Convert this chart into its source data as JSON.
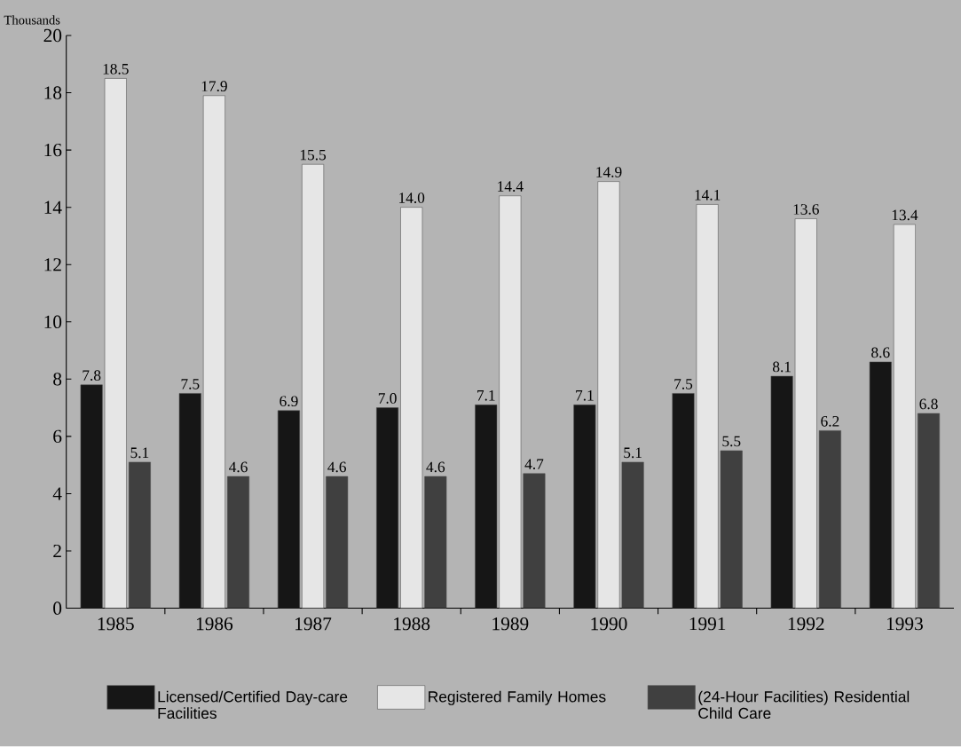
{
  "chart_data": {
    "type": "bar",
    "ylabel": "Thousands",
    "categories": [
      "1985",
      "1986",
      "1987",
      "1988",
      "1989",
      "1990",
      "1991",
      "1992",
      "1993"
    ],
    "series": [
      {
        "name": "Licensed/Certified Day-care Facilities",
        "color": "#161616",
        "values": [
          7.8,
          7.5,
          6.9,
          7.0,
          7.1,
          7.1,
          7.5,
          8.1,
          8.6
        ],
        "value_labels": [
          "7.8",
          "7.5",
          "6.9",
          "7.0",
          "7.1",
          "7.1",
          "7.5",
          "8.1",
          "8.6"
        ]
      },
      {
        "name": "Registered Family Homes",
        "color": "#e6e6e6",
        "values": [
          18.5,
          17.9,
          15.5,
          14.0,
          14.4,
          14.9,
          14.1,
          13.6,
          13.4
        ],
        "value_labels": [
          "18.5",
          "17.9",
          "15.5",
          "14.0",
          "14.4",
          "14.9",
          "14.1",
          "13.6",
          "13.4"
        ]
      },
      {
        "name": "(24-Hour Facilities) Residential Child Care",
        "color": "#404040",
        "values": [
          5.1,
          4.6,
          4.6,
          4.6,
          4.7,
          5.1,
          5.5,
          6.2,
          6.8
        ],
        "value_labels": [
          "5.1",
          "4.6",
          "4.6",
          "4.6",
          "4.7",
          "5.1",
          "5.5",
          "6.2",
          "6.8"
        ]
      }
    ],
    "ylim": [
      0,
      20
    ],
    "yticks": [
      0,
      2,
      4,
      6,
      8,
      10,
      12,
      14,
      16,
      18,
      20
    ],
    "data_labels": true,
    "grid": false,
    "legend": "bottom"
  }
}
